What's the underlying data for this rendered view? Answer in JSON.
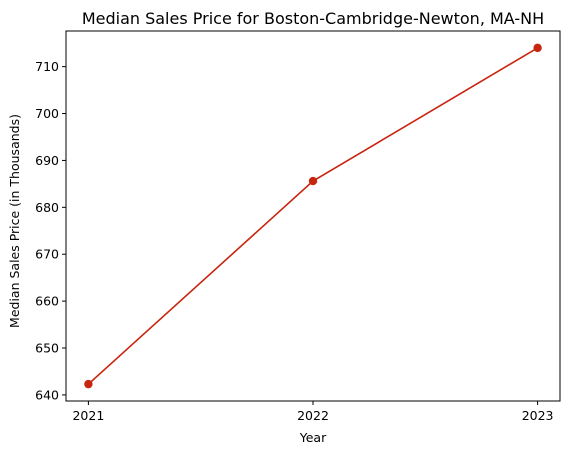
{
  "chart_data": {
    "type": "line",
    "title": "Median Sales Price for Boston-Cambridge-Newton, MA-NH",
    "xlabel": "Year",
    "ylabel": "Median Sales Price (in Thousands)",
    "x": [
      "2021",
      "2022",
      "2023"
    ],
    "series": [
      {
        "values": [
          642.3,
          685.6,
          714.0
        ],
        "color": "#c8250f",
        "marker": "circle"
      }
    ],
    "yticks": [
      640,
      650,
      660,
      670,
      680,
      690,
      700,
      710
    ],
    "ylim": [
      638.7,
      717.6
    ],
    "grid": false,
    "legend": "none"
  }
}
